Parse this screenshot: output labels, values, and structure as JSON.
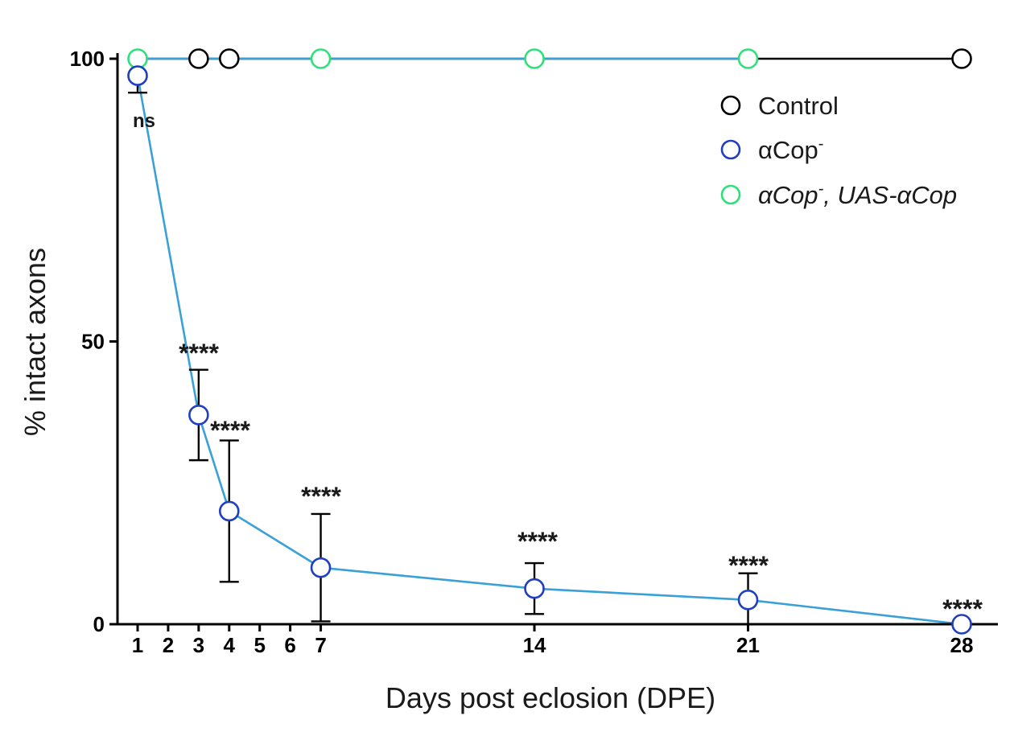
{
  "chart_data": {
    "type": "line",
    "xlabel": "Days post eclosion (DPE)",
    "ylabel": "% intact axons",
    "xlim": [
      1,
      28
    ],
    "ylim": [
      0,
      100
    ],
    "x_ticks": [
      1,
      2,
      3,
      4,
      5,
      6,
      7,
      14,
      21,
      28
    ],
    "y_ticks": [
      0,
      50,
      100
    ],
    "legend_position": "top-right",
    "series": [
      {
        "name": "Control",
        "marker_color": "#000000",
        "line_color": "#000000",
        "points": [
          {
            "x": 3,
            "y": 100
          },
          {
            "x": 4,
            "y": 100
          },
          {
            "x": 28,
            "y": 100
          }
        ]
      },
      {
        "name": "αCop",
        "name_sup": "-",
        "marker_color": "#1f3fbf",
        "line_color": "#3aa0d8",
        "points": [
          {
            "x": 1,
            "y": 97,
            "err_low": 94,
            "err_high": 100,
            "sig": "ns"
          },
          {
            "x": 3,
            "y": 37,
            "err_low": 29,
            "err_high": 45,
            "sig": "****"
          },
          {
            "x": 4,
            "y": 20,
            "err_low": 7.5,
            "err_high": 32.5,
            "sig": "****"
          },
          {
            "x": 7,
            "y": 10,
            "err_low": 0.5,
            "err_high": 19.5,
            "sig": "****"
          },
          {
            "x": 14,
            "y": 6.3,
            "err_low": 1.8,
            "err_high": 10.8,
            "sig": "****"
          },
          {
            "x": 21,
            "y": 4.3,
            "err_low": 0,
            "err_high": 9,
            "sig": "****"
          },
          {
            "x": 28,
            "y": 0,
            "sig": "****"
          }
        ]
      },
      {
        "name": "αCop",
        "name_sup": "-",
        "name_suffix": ", UAS-αCop",
        "marker_color": "#2ee07a",
        "line_color": "#3aa0d8",
        "points": [
          {
            "x": 1,
            "y": 100
          },
          {
            "x": 7,
            "y": 100
          },
          {
            "x": 14,
            "y": 100
          },
          {
            "x": 21,
            "y": 100
          }
        ]
      }
    ]
  }
}
